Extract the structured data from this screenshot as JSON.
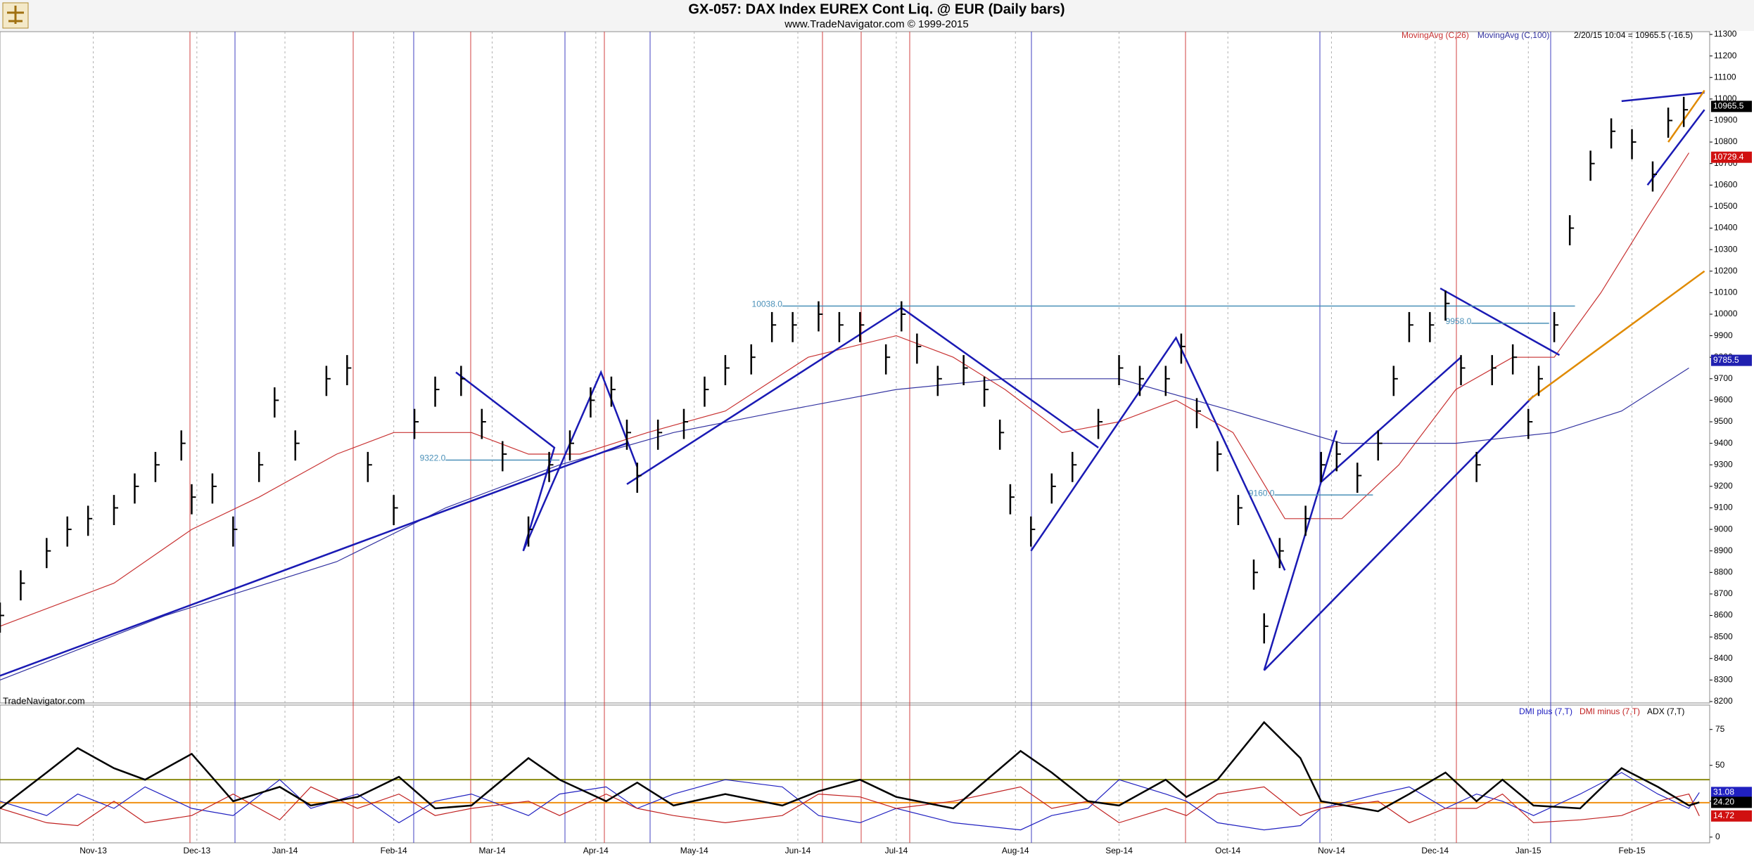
{
  "chart_data": [
    {
      "type": "ohlc",
      "title": "GX-057:  DAX Index EUREX Cont Liq. @ EUR  (Daily bars)",
      "subtitle": "www.TradeNavigator.com © 1999-2015",
      "info": "2/20/15 10:04 = 10965.5 (-16.5)",
      "watermark": "TradeNavigator.com",
      "bar_color": "#000000",
      "x": [
        0,
        4,
        9,
        13,
        17,
        22,
        26,
        30,
        35,
        37,
        41,
        45,
        50,
        53,
        57,
        63,
        67,
        71,
        76,
        80,
        84,
        89,
        93,
        97,
        102,
        106,
        110,
        114,
        118,
        121,
        123,
        127,
        132,
        136,
        140,
        145,
        149,
        153,
        158,
        162,
        166,
        171,
        174,
        177,
        181,
        186,
        190,
        193,
        195,
        199,
        203,
        207,
        212,
        216,
        220,
        225,
        228,
        231,
        235,
        239,
        242,
        244,
        247,
        252,
        255,
        258,
        262,
        266,
        269,
        272,
        276,
        279,
        282,
        285,
        288,
        292,
        295,
        297,
        300,
        303,
        307,
        311,
        315,
        319,
        322,
        325
      ],
      "high": [
        8660,
        8810,
        8960,
        9060,
        9110,
        9160,
        9260,
        9360,
        9460,
        9210,
        9260,
        9060,
        9360,
        9660,
        9460,
        9760,
        9810,
        9360,
        9160,
        9560,
        9710,
        9760,
        9560,
        9410,
        9060,
        9360,
        9460,
        9660,
        9710,
        9510,
        9310,
        9510,
        9560,
        9710,
        9810,
        9860,
        10010,
        10010,
        10060,
        10010,
        10010,
        9860,
        10060,
        9910,
        9760,
        9810,
        9710,
        9510,
        9210,
        9060,
        9260,
        9360,
        9560,
        9810,
        9760,
        9760,
        9910,
        9610,
        9410,
        9160,
        8860,
        8610,
        8960,
        9110,
        9360,
        9410,
        9310,
        9460,
        9760,
        10010,
        10010,
        10110,
        9810,
        9360,
        9810,
        9860,
        9560,
        9760,
        10010,
        10460,
        10760,
        10910,
        10860,
        10710,
        10960,
        11010
      ],
      "low": [
        8520,
        8670,
        8820,
        8920,
        8970,
        9020,
        9120,
        9220,
        9320,
        9070,
        9120,
        8920,
        9220,
        9520,
        9320,
        9620,
        9670,
        9220,
        9020,
        9420,
        9570,
        9620,
        9420,
        9270,
        8920,
        9220,
        9320,
        9520,
        9570,
        9370,
        9170,
        9370,
        9420,
        9570,
        9670,
        9720,
        9870,
        9870,
        9920,
        9870,
        9870,
        9720,
        9920,
        9770,
        9620,
        9670,
        9570,
        9370,
        9070,
        8920,
        9120,
        9220,
        9420,
        9670,
        9620,
        9620,
        9770,
        9470,
        9270,
        9020,
        8720,
        8470,
        8820,
        8970,
        9220,
        9270,
        9170,
        9320,
        9620,
        9870,
        9870,
        9970,
        9670,
        9220,
        9670,
        9720,
        9420,
        9620,
        9870,
        10320,
        10620,
        10770,
        10720,
        10570,
        10820,
        10870
      ],
      "close": [
        8600,
        8750,
        8900,
        9000,
        9050,
        9100,
        9200,
        9300,
        9400,
        9150,
        9200,
        9000,
        9300,
        9600,
        9400,
        9700,
        9750,
        9300,
        9100,
        9500,
        9650,
        9700,
        9500,
        9350,
        9000,
        9300,
        9400,
        9600,
        9650,
        9450,
        9250,
        9450,
        9500,
        9650,
        9750,
        9800,
        9950,
        9950,
        10000,
        9950,
        9950,
        9800,
        10000,
        9850,
        9700,
        9750,
        9650,
        9450,
        9150,
        9000,
        9200,
        9300,
        9500,
        9750,
        9700,
        9700,
        9850,
        9550,
        9350,
        9100,
        8800,
        8550,
        8900,
        9050,
        9300,
        9350,
        9250,
        9400,
        9700,
        9950,
        9950,
        10050,
        9750,
        9300,
        9750,
        9800,
        9500,
        9700,
        9950,
        10400,
        10700,
        10850,
        10800,
        10650,
        10900,
        10950
      ],
      "series": [
        {
          "name": "MovingAvg (C,26)",
          "color": "#c83232",
          "x": [
            0,
            22,
            37,
            50,
            65,
            76,
            91,
            102,
            112,
            125,
            140,
            156,
            173,
            184,
            194,
            205,
            216,
            227,
            238,
            248,
            259,
            270,
            281,
            292,
            300,
            309,
            318,
            326
          ],
          "values": [
            8550,
            8750,
            9000,
            9150,
            9350,
            9450,
            9450,
            9350,
            9350,
            9450,
            9550,
            9800,
            9900,
            9800,
            9650,
            9450,
            9500,
            9600,
            9450,
            9050,
            9050,
            9300,
            9650,
            9800,
            9800,
            10100,
            10450,
            10750
          ]
        },
        {
          "name": "MovingAvg (C,100)",
          "color": "#3232a0",
          "x": [
            0,
            32,
            65,
            86,
            108,
            130,
            151,
            173,
            194,
            216,
            238,
            259,
            281,
            300,
            313,
            326
          ],
          "values": [
            8300,
            8600,
            8850,
            9100,
            9300,
            9450,
            9550,
            9650,
            9700,
            9700,
            9550,
            9400,
            9400,
            9450,
            9550,
            9750
          ]
        }
      ],
      "trend_lines": [
        {
          "color": "#1a1ab4",
          "x": [
            0,
            121
          ],
          "y": [
            8320,
            9400
          ]
        },
        {
          "color": "#1a1ab4",
          "x": [
            88,
            107,
            101,
            116,
            123
          ],
          "y": [
            9730,
            9380,
            8900,
            9730,
            9290
          ]
        },
        {
          "color": "#1a1ab4",
          "x": [
            121,
            174
          ],
          "y": [
            9210,
            10030
          ]
        },
        {
          "color": "#1a1ab4",
          "x": [
            174,
            212
          ],
          "y": [
            10030,
            9380
          ]
        },
        {
          "color": "#1a1ab4",
          "x": [
            199,
            227,
            248
          ],
          "y": [
            8900,
            9890,
            8810
          ]
        },
        {
          "color": "#1a1ab4",
          "x": [
            244,
            296
          ],
          "y": [
            8345,
            9620
          ]
        },
        {
          "color": "#1a1ab4",
          "x": [
            244,
            258,
            255,
            282
          ],
          "y": [
            8345,
            9460,
            9220,
            9800
          ]
        },
        {
          "color": "#1a1ab4",
          "x": [
            278,
            301
          ],
          "y": [
            10120,
            9810
          ]
        },
        {
          "color": "#1a1ab4",
          "x": [
            313,
            329
          ],
          "y": [
            10990,
            11030
          ]
        },
        {
          "color": "#1a1ab4",
          "x": [
            318,
            329
          ],
          "y": [
            10600,
            10950
          ]
        },
        {
          "color": "#e08a00",
          "x": [
            295,
            329
          ],
          "y": [
            9600,
            10200
          ]
        },
        {
          "color": "#e08a00",
          "x": [
            322,
            329
          ],
          "y": [
            10800,
            11040
          ]
        }
      ],
      "annotations": [
        {
          "label": "10038.0",
          "x": 151,
          "x2": 304,
          "y": 10038
        },
        {
          "label": "9322.0",
          "x": 86,
          "x2": 108,
          "y": 9322
        },
        {
          "label": "9958.0",
          "x": 284,
          "x2": 299,
          "y": 9958
        },
        {
          "label": "9160.0",
          "x": 246,
          "x2": 265,
          "y": 9160
        }
      ],
      "flags": [
        {
          "value": 10965.5,
          "color": "#000000"
        },
        {
          "value": 10729.4,
          "color": "#d01010"
        },
        {
          "value": 9785.5,
          "color": "#2020b0"
        }
      ],
      "xlim": [
        0,
        330
      ],
      "xticks": [
        {
          "value": 18,
          "label": "Nov-13"
        },
        {
          "value": 38,
          "label": "Dec-13"
        },
        {
          "value": 55,
          "label": "Jan-14"
        },
        {
          "value": 76,
          "label": "Feb-14"
        },
        {
          "value": 95,
          "label": "Mar-14"
        },
        {
          "value": 115,
          "label": "Apr-14"
        },
        {
          "value": 134,
          "label": "May-14"
        },
        {
          "value": 154,
          "label": "Jun-14"
        },
        {
          "value": 173,
          "label": "Jul-14"
        },
        {
          "value": 196,
          "label": "Aug-14"
        },
        {
          "value": 216,
          "label": "Sep-14"
        },
        {
          "value": 237,
          "label": "Oct-14"
        },
        {
          "value": 257,
          "label": "Nov-14"
        },
        {
          "value": 277,
          "label": "Dec-14"
        },
        {
          "value": 295,
          "label": "Jan-15"
        },
        {
          "value": 315,
          "label": "Feb-15"
        }
      ],
      "ylim": [
        8200,
        11300
      ],
      "yticks": [
        8200,
        8300,
        8400,
        8500,
        8600,
        8700,
        8800,
        8900,
        9000,
        9100,
        9200,
        9300,
        9400,
        9500,
        9600,
        9700,
        9800,
        9900,
        10000,
        10100,
        10200,
        10300,
        10400,
        10500,
        10600,
        10700,
        10800,
        10900,
        11000,
        11100,
        11200,
        11300
      ]
    },
    {
      "type": "line",
      "x": [
        0,
        9,
        15,
        22,
        28,
        37,
        45,
        54,
        60,
        69,
        77,
        84,
        91,
        102,
        108,
        117,
        123,
        130,
        140,
        151,
        158,
        166,
        173,
        184,
        197,
        203,
        210,
        216,
        225,
        229,
        235,
        244,
        251,
        255,
        266,
        272,
        279,
        285,
        290,
        296,
        305,
        313,
        320,
        326,
        328
      ],
      "series": [
        {
          "name": "DMI plus (7,T)",
          "color": "#2020c0",
          "values": [
            25,
            15,
            30,
            20,
            35,
            20,
            15,
            40,
            20,
            30,
            10,
            25,
            30,
            15,
            30,
            35,
            20,
            30,
            40,
            35,
            15,
            10,
            20,
            10,
            5,
            15,
            20,
            40,
            30,
            25,
            10,
            5,
            8,
            20,
            30,
            35,
            20,
            30,
            25,
            15,
            30,
            45,
            30,
            20,
            31.08
          ]
        },
        {
          "name": "DMI minus (7,T)",
          "color": "#c02020",
          "values": [
            20,
            10,
            8,
            25,
            10,
            15,
            30,
            12,
            35,
            20,
            30,
            15,
            20,
            25,
            15,
            30,
            20,
            15,
            10,
            15,
            30,
            28,
            20,
            25,
            35,
            20,
            25,
            10,
            20,
            15,
            30,
            35,
            15,
            20,
            25,
            10,
            20,
            20,
            30,
            10,
            12,
            15,
            25,
            30,
            14.72
          ]
        },
        {
          "name": "ADX (7,T)",
          "color": "#000000",
          "values": [
            20,
            45,
            62,
            48,
            40,
            58,
            25,
            35,
            22,
            28,
            42,
            20,
            22,
            55,
            40,
            25,
            38,
            22,
            30,
            22,
            32,
            40,
            28,
            20,
            60,
            45,
            25,
            22,
            40,
            28,
            40,
            80,
            55,
            25,
            18,
            30,
            45,
            25,
            40,
            22,
            20,
            48,
            35,
            22,
            24.2
          ]
        }
      ],
      "hlines": [
        {
          "value": 40,
          "color": "#8a8a10"
        },
        {
          "value": 24,
          "color": "#f09010"
        }
      ],
      "flags": [
        {
          "value": 31.08,
          "color": "#2020c0"
        },
        {
          "value": 24.2,
          "label": "24.20",
          "color": "#000000"
        },
        {
          "value": 14.72,
          "color": "#d01010"
        }
      ],
      "ylim": [
        -4,
        92
      ],
      "yticks": [
        0,
        25,
        50,
        75
      ]
    }
  ]
}
